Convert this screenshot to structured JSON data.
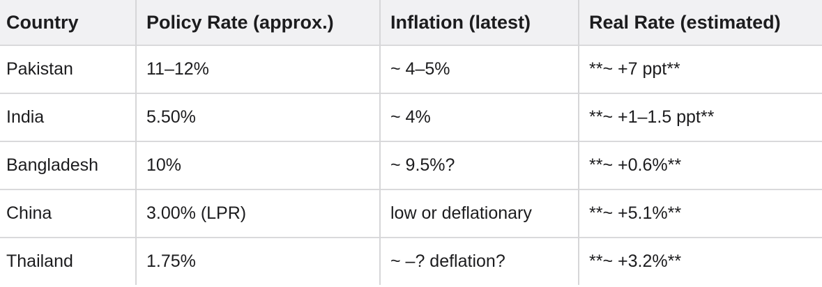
{
  "table": {
    "header": [
      "Country",
      "Policy Rate (approx.)",
      "Inflation (latest)",
      "Real Rate (estimated)"
    ],
    "rows": [
      [
        "Pakistan",
        "11–12%",
        "~ 4–5%",
        "**~ +7 ppt**"
      ],
      [
        "India",
        "5.50%",
        "~ 4%",
        "**~ +1–1.5 ppt**"
      ],
      [
        "Bangladesh",
        "10%",
        "~ 9.5%?",
        "**~ +0.6%**"
      ],
      [
        "China",
        "3.00% (LPR)",
        "low or deflationary",
        "**~ +5.1%**"
      ],
      [
        "Thailand",
        "1.75%",
        "~ –? deflation?",
        "**~ +3.2%**"
      ]
    ]
  }
}
